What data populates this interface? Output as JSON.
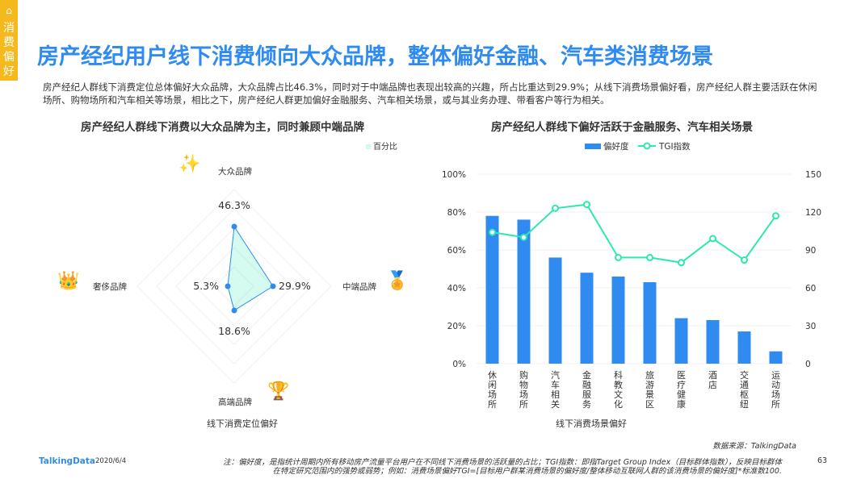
{
  "side_tag": {
    "label": "消费偏好",
    "icon": "basket-icon"
  },
  "title": "房产经纪用户线下消费倾向大众品牌，整体偏好金融、汽车类消费场景",
  "description": "房产经纪人群线下消费定位总体偏好大众品牌，大众品牌占比46.3%，同时对于中端品牌也表现出较高的兴趣，所占比重达到29.9%；从线下消费场景偏好看，房产经纪人群主要活跃在休闲场所、购物场所和汽车相关等场景，相比之下，房产经纪人群更加偏好金融服务、汽车相关场景，或与其业务办理、带看客户等行为相关。",
  "chart_data": [
    {
      "type": "radar",
      "title": "房产经纪人群线下消费以大众品牌为主，同时兼顾中端品牌",
      "legend": "百分比",
      "xlabel": "线下消费定位偏好",
      "categories": [
        "大众品牌",
        "中端品牌",
        "高端品牌",
        "奢侈品牌"
      ],
      "values": [
        46.3,
        29.9,
        18.6,
        5.3
      ],
      "labels": [
        "46.3%",
        "29.9%",
        "18.6%",
        "5.3%"
      ],
      "icons": [
        "stars-hand-icon",
        "medal-hand-icon",
        "trophy-hand-icon",
        "crown-hand-icon"
      ]
    },
    {
      "type": "bar+line",
      "title": "房产经纪人群线下偏好活跃于金融服务、汽车相关场景",
      "xlabel": "线下消费场景偏好",
      "categories": [
        "休闲场所",
        "购物场所",
        "汽车相关",
        "金融服务",
        "科教文化",
        "旅游景区",
        "医疗健康",
        "酒店",
        "交通枢纽",
        "运动场所"
      ],
      "series": [
        {
          "name": "偏好度",
          "type": "bar",
          "axis": "left",
          "values": [
            78,
            76,
            56,
            48,
            46,
            43,
            24,
            23,
            17,
            6.5
          ]
        },
        {
          "name": "TGI指数",
          "type": "line",
          "axis": "right",
          "values": [
            104,
            100,
            123,
            126,
            84,
            84,
            80,
            99,
            82,
            117
          ]
        }
      ],
      "ylim_left": [
        0,
        100
      ],
      "yticks_left": [
        "0%",
        "20%",
        "40%",
        "60%",
        "80%",
        "100%"
      ],
      "ylim_right": [
        0,
        150
      ],
      "yticks_right": [
        "0",
        "30",
        "60",
        "90",
        "120",
        "150"
      ],
      "legend": "top"
    }
  ],
  "colors": {
    "bar": "#2f8bf0",
    "line": "#2de8b0",
    "accent": "#f5b91e",
    "title": "#2f8bf0"
  },
  "footer": {
    "source": "数据来源：TalkingData",
    "brand": "TalkingData",
    "date": "2020/6/4",
    "page": "63",
    "note1": "注：偏好度，是指统计周期内所有移动房产流量平台用户在不同线下消费场景的活跃量的占比；TGI指数：即指Target Group Index（目标群体指数），反映目标群体",
    "note2": "在特定研究范围内的强势或弱势；例如：消费场景偏好TGI=[目标用户群某消费场景的偏好度/整体移动互联网人群的该消费场景的偏好度]*标准数100."
  }
}
